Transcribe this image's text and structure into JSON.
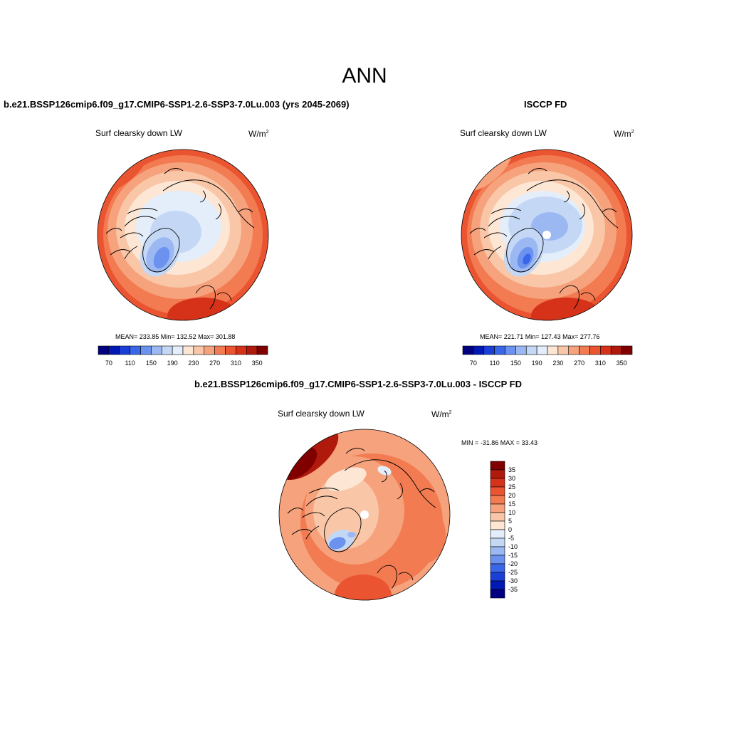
{
  "figure_title": "ANN",
  "chart_data": [
    {
      "type": "heatmap",
      "panel": "model",
      "title": "b.e21.BSSP126cmip6.f09_g17.CMIP6-SSP1-2.6-SSP3-7.0Lu.003 (yrs 2045-2069)",
      "variable": "Surf clearsky down LW",
      "units_base": "W/m",
      "units_exp": "2",
      "projection": "north-polar-stereographic",
      "stats_text": "MEAN= 233.85  Min= 132.52  Max= 301.88",
      "mean": 233.85,
      "min": 132.52,
      "max": 301.88,
      "levels": [
        70,
        90,
        110,
        130,
        150,
        170,
        190,
        210,
        230,
        250,
        270,
        290,
        310,
        330,
        350
      ],
      "tick_labels": [
        "70",
        "110",
        "150",
        "190",
        "230",
        "270",
        "310",
        "350"
      ],
      "colorbar_orientation": "horizontal"
    },
    {
      "type": "heatmap",
      "panel": "obs",
      "title": "ISCCP FD",
      "variable": "Surf clearsky down LW",
      "units_base": "W/m",
      "units_exp": "2",
      "projection": "north-polar-stereographic",
      "stats_text": "MEAN= 221.71  Min= 127.43  Max= 277.76",
      "mean": 221.71,
      "min": 127.43,
      "max": 277.76,
      "levels": [
        70,
        90,
        110,
        130,
        150,
        170,
        190,
        210,
        230,
        250,
        270,
        290,
        310,
        330,
        350
      ],
      "tick_labels": [
        "70",
        "110",
        "150",
        "190",
        "230",
        "270",
        "310",
        "350"
      ],
      "colorbar_orientation": "horizontal"
    },
    {
      "type": "heatmap",
      "panel": "difference",
      "title": "b.e21.BSSP126cmip6.f09_g17.CMIP6-SSP1-2.6-SSP3-7.0Lu.003 - ISCCP FD",
      "variable": "Surf clearsky down LW",
      "units_base": "W/m",
      "units_exp": "2",
      "projection": "north-polar-stereographic",
      "stats_text": "MIN = -31.86 MAX =  33.43",
      "min": -31.86,
      "max": 33.43,
      "levels": [
        -35,
        -30,
        -25,
        -20,
        -15,
        -10,
        -5,
        0,
        5,
        10,
        15,
        20,
        25,
        30,
        35
      ],
      "tick_labels": [
        "35",
        "30",
        "25",
        "20",
        "15",
        "10",
        "5",
        "0",
        "-5",
        "-10",
        "-15",
        "-20",
        "-25",
        "-30",
        "-35"
      ],
      "colorbar_orientation": "vertical"
    }
  ],
  "colors": {
    "palette16": [
      "#000080",
      "#0018b4",
      "#1a3fd6",
      "#3a66ea",
      "#6a92ee",
      "#9bb8f2",
      "#c4d8f6",
      "#e4eefb",
      "#fde6d3",
      "#f9c7a8",
      "#f6a27c",
      "#f27b52",
      "#ea5430",
      "#d6321a",
      "#b01a0c",
      "#800000"
    ],
    "coastline": "#000000"
  }
}
